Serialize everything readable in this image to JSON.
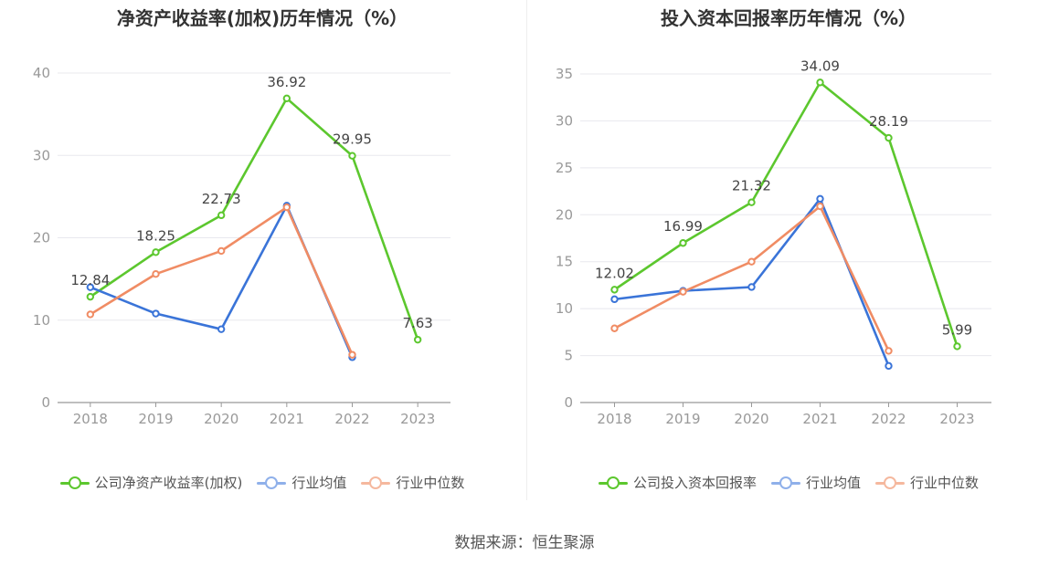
{
  "charts": [
    {
      "title": "净资产收益率(加权)历年情况（%）",
      "legend": [
        "公司净资产收益率(加权)",
        "行业均值",
        "行业中位数"
      ]
    },
    {
      "title": "投入资本回报率历年情况（%）",
      "legend": [
        "公司投入资本回报率",
        "行业均值",
        "行业中位数"
      ]
    }
  ],
  "source": "数据来源：恒生聚源",
  "colors": {
    "company": "#5cc72e",
    "avg": "#3a74d8",
    "median": "#f08c64"
  },
  "chart_data": [
    {
      "type": "line",
      "title": "净资产收益率(加权)历年情况（%）",
      "categories": [
        "2018",
        "2019",
        "2020",
        "2021",
        "2022",
        "2023"
      ],
      "ylim": [
        0,
        40
      ],
      "yticks": [
        0,
        10,
        20,
        30,
        40
      ],
      "grid": true,
      "legend_position": "bottom",
      "series": [
        {
          "name": "公司净资产收益率(加权)",
          "key": "company",
          "values": [
            12.84,
            18.25,
            22.73,
            36.92,
            29.95,
            7.63
          ],
          "labels": [
            "12.84",
            "18.25",
            "22.73",
            "36.92",
            "29.95",
            "7.63"
          ]
        },
        {
          "name": "行业均值",
          "key": "avg",
          "values": [
            14.0,
            10.8,
            8.9,
            23.9,
            5.5,
            null
          ]
        },
        {
          "name": "行业中位数",
          "key": "median",
          "values": [
            10.7,
            15.6,
            18.4,
            23.7,
            5.8,
            null
          ]
        }
      ]
    },
    {
      "type": "line",
      "title": "投入资本回报率历年情况（%）",
      "categories": [
        "2018",
        "2019",
        "2020",
        "2021",
        "2022",
        "2023"
      ],
      "ylim": [
        0,
        35
      ],
      "yticks": [
        0,
        5,
        10,
        15,
        20,
        25,
        30,
        35
      ],
      "grid": true,
      "legend_position": "bottom",
      "series": [
        {
          "name": "公司投入资本回报率",
          "key": "company",
          "values": [
            12.02,
            16.99,
            21.32,
            34.09,
            28.19,
            5.99
          ],
          "labels": [
            "12.02",
            "16.99",
            "21.32",
            "34.09",
            "28.19",
            "5.99"
          ]
        },
        {
          "name": "行业均值",
          "key": "avg",
          "values": [
            11.0,
            11.9,
            12.3,
            21.7,
            3.9,
            null
          ]
        },
        {
          "name": "行业中位数",
          "key": "median",
          "values": [
            7.9,
            11.8,
            15.0,
            20.9,
            5.5,
            null
          ]
        }
      ]
    }
  ]
}
